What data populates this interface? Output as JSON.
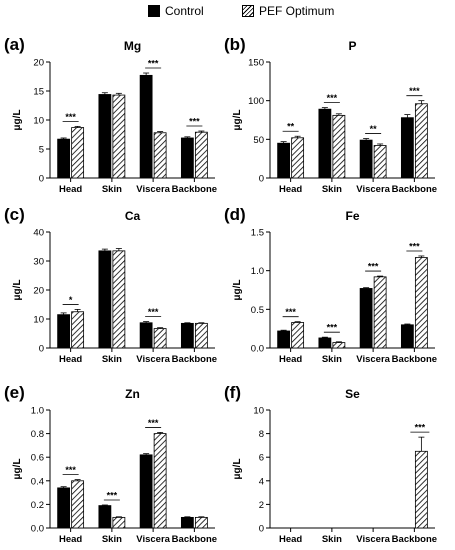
{
  "legend": {
    "control_label": "Control",
    "pef_label": "PEF Optimum"
  },
  "chart_data": [
    {
      "type": "bar",
      "panel": "(a)",
      "title": "Mg",
      "ylabel": "μg/L",
      "ylim": [
        0,
        20
      ],
      "yticks": [
        "0",
        "5",
        "10",
        "15",
        "20"
      ],
      "ytick_values": [
        0,
        5,
        10,
        15,
        20
      ],
      "categories": [
        "Head",
        "Skin",
        "Viscera",
        "Backbone"
      ],
      "series": [
        {
          "name": "Control",
          "values": [
            6.7,
            14.4,
            17.7,
            6.9
          ]
        },
        {
          "name": "PEF Optimum",
          "values": [
            8.7,
            14.3,
            7.8,
            7.9
          ]
        }
      ],
      "error": [
        [
          0.2,
          0.3,
          0.4,
          0.2
        ],
        [
          0.2,
          0.3,
          0.2,
          0.2
        ]
      ],
      "significance": [
        "***",
        "",
        "***",
        "***"
      ]
    },
    {
      "type": "bar",
      "panel": "(b)",
      "title": "P",
      "ylabel": "μg/L",
      "ylim": [
        0,
        150
      ],
      "yticks": [
        "0",
        "50",
        "100",
        "150"
      ],
      "ytick_values": [
        0,
        50,
        100,
        150
      ],
      "categories": [
        "Head",
        "Skin",
        "Viscera",
        "Backbone"
      ],
      "series": [
        {
          "name": "Control",
          "values": [
            45,
            89,
            49,
            78
          ]
        },
        {
          "name": "PEF Optimum",
          "values": [
            52,
            81,
            42,
            96
          ]
        }
      ],
      "error": [
        [
          2,
          2,
          2,
          4
        ],
        [
          2,
          2,
          2,
          4
        ]
      ],
      "significance": [
        "**",
        "***",
        "**",
        "***"
      ]
    },
    {
      "type": "bar",
      "panel": "(c)",
      "title": "Ca",
      "ylabel": "μg/L",
      "ylim": [
        0,
        40
      ],
      "yticks": [
        "0",
        "10",
        "20",
        "30",
        "40"
      ],
      "ytick_values": [
        0,
        10,
        20,
        30,
        40
      ],
      "categories": [
        "Head",
        "Skin",
        "Viscera",
        "Backbone"
      ],
      "series": [
        {
          "name": "Control",
          "values": [
            11.5,
            33.5,
            8.7,
            8.5
          ]
        },
        {
          "name": "PEF Optimum",
          "values": [
            12.5,
            33.5,
            6.7,
            8.5
          ]
        }
      ],
      "error": [
        [
          0.6,
          0.6,
          0.4,
          0.2
        ],
        [
          0.8,
          0.8,
          0.3,
          0.2
        ]
      ],
      "significance": [
        "*",
        "",
        "***",
        ""
      ]
    },
    {
      "type": "bar",
      "panel": "(d)",
      "title": "Fe",
      "ylabel": "μg/L",
      "ylim": [
        0,
        1.5
      ],
      "yticks": [
        "0.0",
        "0.5",
        "1.0",
        "1.5"
      ],
      "ytick_values": [
        0,
        0.5,
        1.0,
        1.5
      ],
      "categories": [
        "Head",
        "Skin",
        "Viscera",
        "Backbone"
      ],
      "series": [
        {
          "name": "Control",
          "values": [
            0.22,
            0.13,
            0.77,
            0.3
          ]
        },
        {
          "name": "PEF Optimum",
          "values": [
            0.33,
            0.07,
            0.92,
            1.17
          ]
        }
      ],
      "error": [
        [
          0.01,
          0.01,
          0.01,
          0.01
        ],
        [
          0.01,
          0.01,
          0.01,
          0.02
        ]
      ],
      "significance": [
        "***",
        "***",
        "***",
        "***"
      ]
    },
    {
      "type": "bar",
      "panel": "(e)",
      "title": "Zn",
      "ylabel": "μg/L",
      "ylim": [
        0,
        1.0
      ],
      "yticks": [
        "0.0",
        "0.2",
        "0.4",
        "0.6",
        "0.8",
        "1.0"
      ],
      "ytick_values": [
        0,
        0.2,
        0.4,
        0.6,
        0.8,
        1.0
      ],
      "categories": [
        "Head",
        "Skin",
        "Viscera",
        "Backbone"
      ],
      "series": [
        {
          "name": "Control",
          "values": [
            0.34,
            0.19,
            0.62,
            0.09
          ]
        },
        {
          "name": "PEF Optimum",
          "values": [
            0.4,
            0.09,
            0.8,
            0.09
          ]
        }
      ],
      "error": [
        [
          0.01,
          0.005,
          0.01,
          0.005
        ],
        [
          0.01,
          0.005,
          0.01,
          0.005
        ]
      ],
      "significance": [
        "***",
        "***",
        "***",
        ""
      ]
    },
    {
      "type": "bar",
      "panel": "(f)",
      "title": "Se",
      "ylabel": "μg/L",
      "ylim": [
        0,
        10
      ],
      "yticks": [
        "0",
        "2",
        "4",
        "6",
        "8",
        "10"
      ],
      "ytick_values": [
        0,
        2,
        4,
        6,
        8,
        10
      ],
      "categories": [
        "Head",
        "Skin",
        "Viscera",
        "Backbone"
      ],
      "series": [
        {
          "name": "Control",
          "values": [
            0,
            0,
            0,
            0
          ]
        },
        {
          "name": "PEF Optimum",
          "values": [
            0,
            0,
            0,
            6.5
          ]
        }
      ],
      "error": [
        [
          0,
          0,
          0,
          0
        ],
        [
          0,
          0,
          0,
          1.2
        ]
      ],
      "significance": [
        "",
        "",
        "",
        "***"
      ]
    }
  ]
}
